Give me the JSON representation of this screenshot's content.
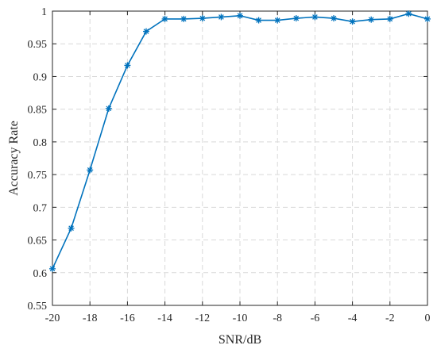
{
  "chart_data": {
    "type": "line",
    "title": "",
    "xlabel": "SNR/dB",
    "ylabel": "Accuracy Rate",
    "xlim": [
      -20,
      0
    ],
    "ylim": [
      0.55,
      1
    ],
    "x_ticks": [
      "-20",
      "-18",
      "-16",
      "-14",
      "-12",
      "-10",
      "-8",
      "-6",
      "-4",
      "-2",
      "0"
    ],
    "y_ticks": [
      "0.55",
      "0.6",
      "0.65",
      "0.7",
      "0.75",
      "0.8",
      "0.85",
      "0.9",
      "0.95",
      "1"
    ],
    "grid": true,
    "marker": "asterisk",
    "colors": {
      "series": "#0072bd",
      "grid": "#d9d9d9",
      "axis": "#262626"
    },
    "series": [
      {
        "x": [
          -20,
          -19,
          -18,
          -17,
          -16,
          -15,
          -14,
          -13,
          -12,
          -11,
          -10,
          -9,
          -8,
          -7,
          -6,
          -5,
          -4,
          -3,
          -2,
          -1,
          0
        ],
        "values": [
          0.606,
          0.668,
          0.757,
          0.851,
          0.917,
          0.969,
          0.988,
          0.988,
          0.989,
          0.991,
          0.993,
          0.986,
          0.986,
          0.989,
          0.991,
          0.989,
          0.984,
          0.987,
          0.988,
          0.996,
          0.988
        ]
      }
    ]
  }
}
